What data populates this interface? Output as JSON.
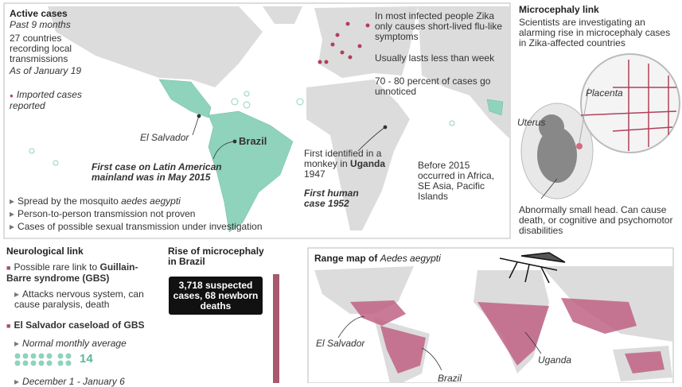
{
  "active_cases": {
    "title": "Active cases",
    "period": "Past 9 months",
    "countries": "27 countries recording local transmissions",
    "date": "As of January 19",
    "imported": "Imported cases reported"
  },
  "world_map": {
    "el_salvador": "El Salvador",
    "brazil": "Brazil",
    "first_case": "First case on Latin American mainland was in May 2015",
    "monkey_text": "First identified in a monkey in",
    "monkey_place": "Uganda",
    "monkey_year": "1947",
    "first_human": "First human case 1952",
    "before_2015": "Before 2015 occurred in Africa, SE Asia, Pacific Islands"
  },
  "symptoms": [
    "In most infected people Zika only causes short-lived flu-like symptoms",
    "Usually lasts less than week",
    "70 - 80 percent of cases go unnoticed"
  ],
  "bullets": {
    "mosquito_text": "Spread by the mosquito",
    "mosquito_name": "aedes aegypti",
    "person": "Person-to-person transmission not proven",
    "sexual": "Cases of possible sexual transmission under investigation"
  },
  "microcephaly": {
    "title": "Microcephaly link",
    "text": "Scientists are investigating an alarming rise in microcephaly cases in Zika-affected countries",
    "placenta": "Placenta",
    "uterus": "Uterus",
    "head": "Abnormally small head. Can cause death, or cognitive and psychomotor disabilities"
  },
  "neurological": {
    "title": "Neurological link",
    "link_text": "Possible rare link to",
    "link_name": "Guillain-Barre syndrome (GBS)",
    "attacks": "Attacks nervous system, can cause paralysis, death",
    "caseload": "El Salvador caseload of GBS",
    "average_label": "Normal monthly average",
    "average_value": 14,
    "period": "December 1 - January 6"
  },
  "brazil_rise": {
    "title": "Rise of microcephaly in Brazil",
    "box": "3,718 suspected cases, 68 newborn deaths"
  },
  "range_map": {
    "title": "Range map of",
    "species": "Aedes aegypti",
    "el_salvador": "El Salvador",
    "brazil": "Brazil",
    "uganda": "Uganda"
  }
}
